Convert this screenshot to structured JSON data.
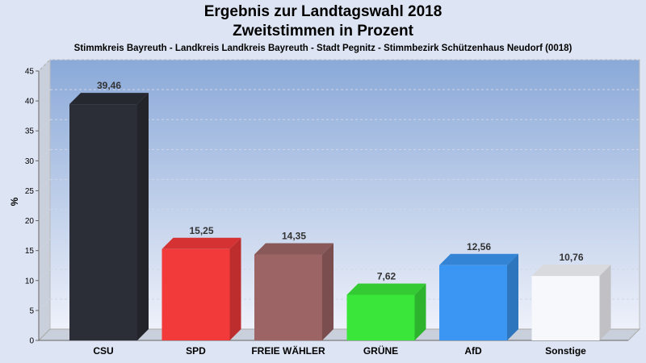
{
  "chart_data": {
    "type": "bar",
    "title": "Ergebnis zur Landtagswahl 2018",
    "subtitle": "Zweitstimmen in Prozent",
    "caption": "Stimmkreis Bayreuth - Landkreis Landkreis Bayreuth - Stadt Pegnitz - Stimmbezirk Schützenhaus Neudorf (0018)",
    "ylabel": "%",
    "ylim": [
      0,
      45
    ],
    "yticks": [
      0,
      5,
      10,
      15,
      20,
      25,
      30,
      35,
      40,
      45
    ],
    "categories": [
      "CSU",
      "SPD",
      "FREIE WÄHLER",
      "GRÜNE",
      "AfD",
      "Sonstige"
    ],
    "values": [
      39.46,
      15.25,
      14.35,
      7.62,
      12.56,
      10.76
    ],
    "value_labels": [
      "39,46",
      "15,25",
      "14,35",
      "7,62",
      "12,56",
      "10,76"
    ],
    "colors": [
      "#2b2e36",
      "#f23a3a",
      "#9c6464",
      "#3ae63a",
      "#3a96f2",
      "#f7f8fc"
    ],
    "grid": true
  }
}
